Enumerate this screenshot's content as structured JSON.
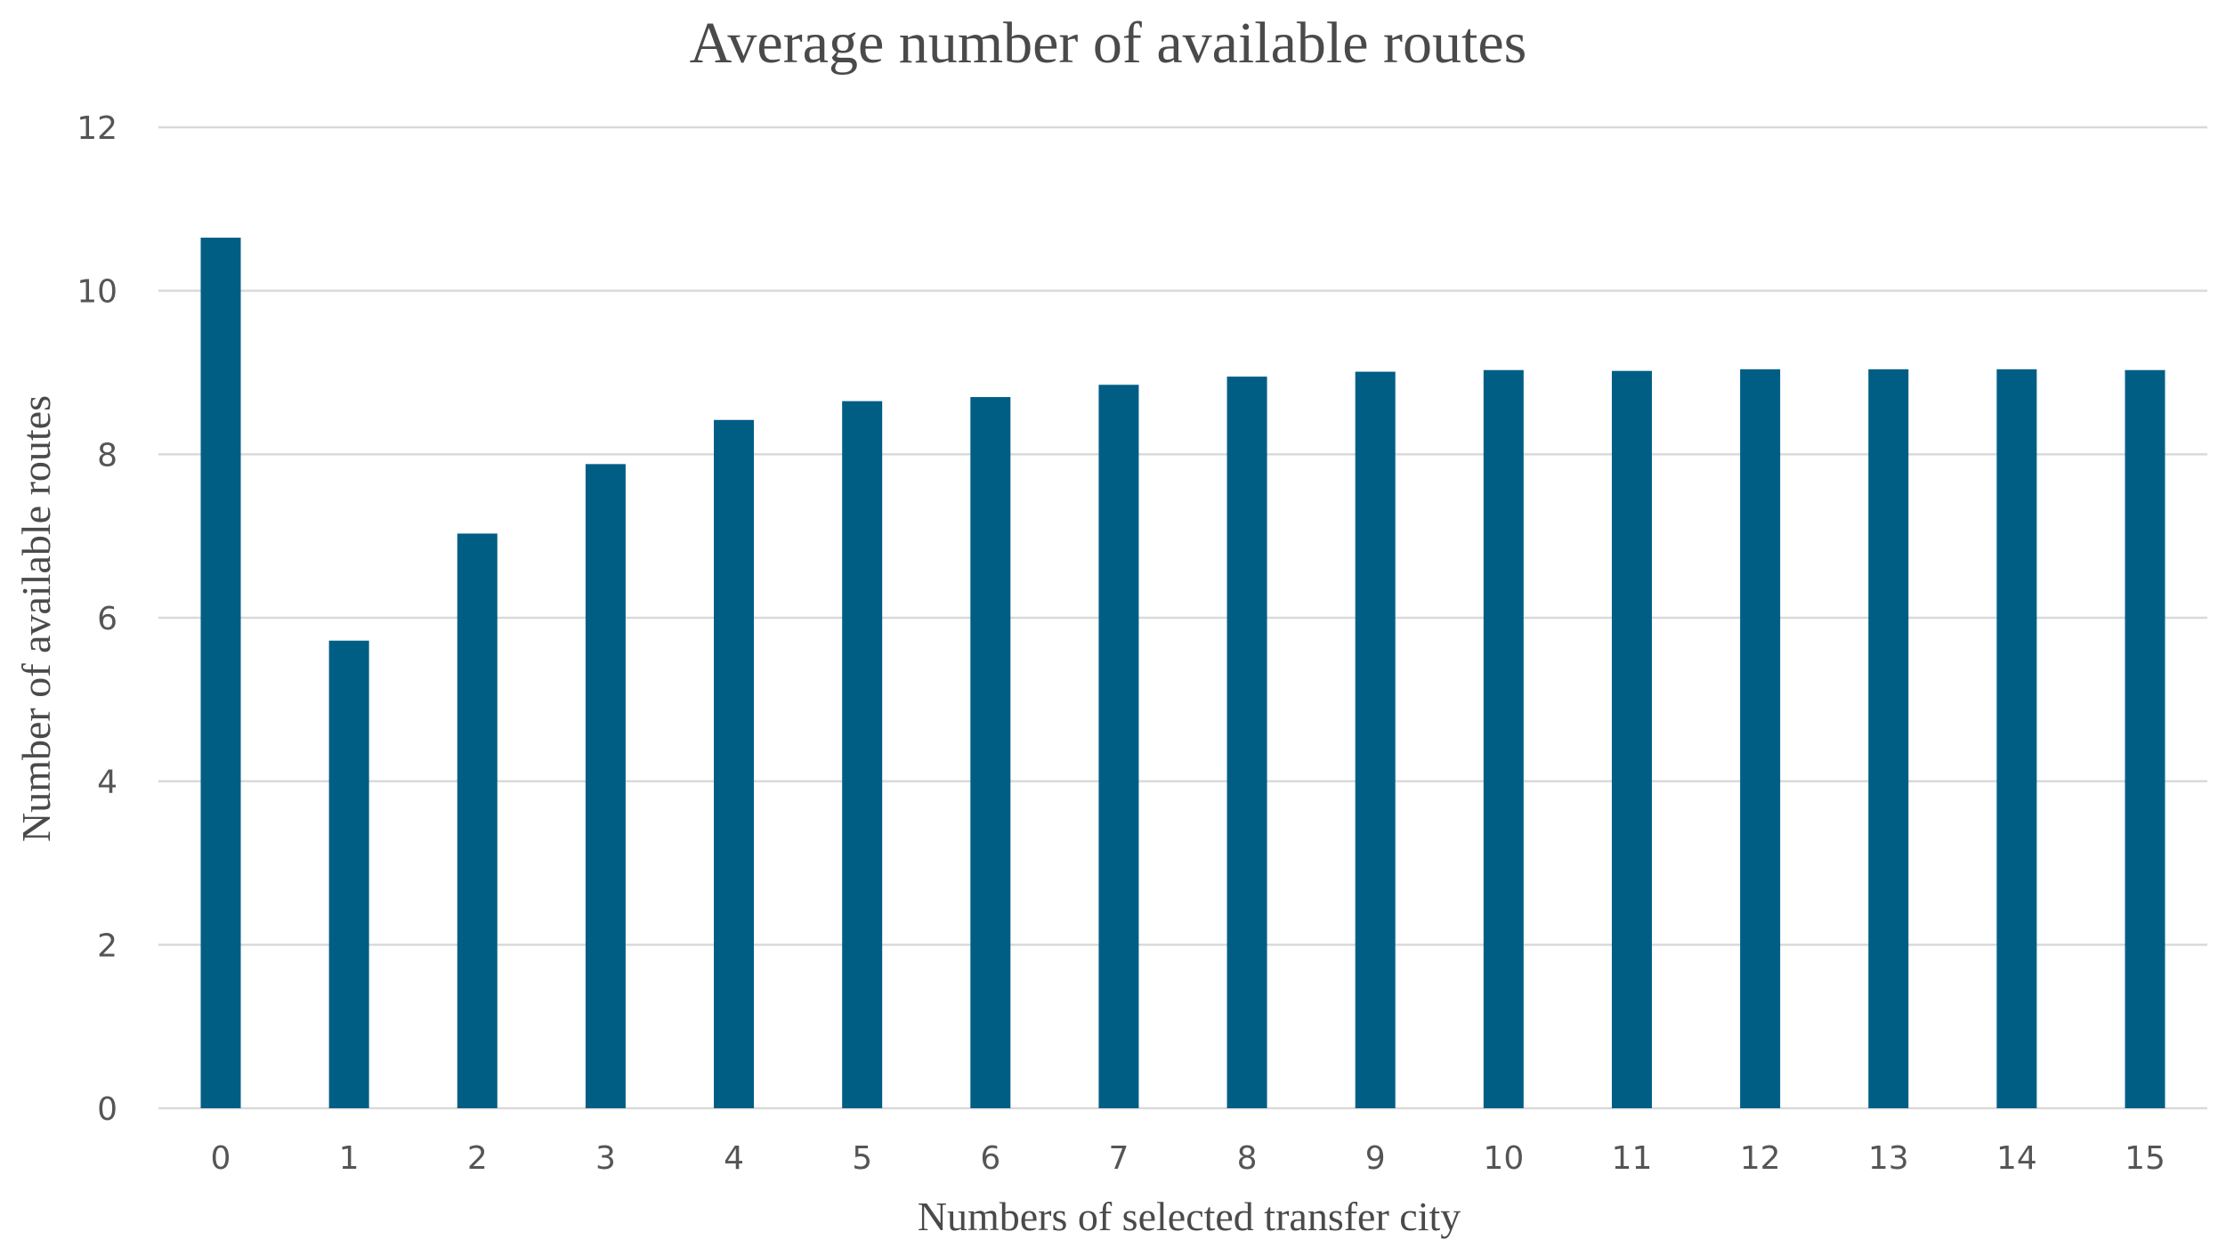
{
  "chart_data": {
    "type": "bar",
    "title": "Average number of available routes",
    "xlabel": "Numbers of selected transfer city",
    "ylabel": "Number of available routes",
    "categories": [
      "0",
      "1",
      "2",
      "3",
      "4",
      "5",
      "6",
      "7",
      "8",
      "9",
      "10",
      "11",
      "12",
      "13",
      "14",
      "15"
    ],
    "values": [
      10.65,
      5.72,
      7.03,
      7.88,
      8.42,
      8.65,
      8.7,
      8.85,
      8.95,
      9.01,
      9.03,
      9.02,
      9.04,
      9.04,
      9.04,
      9.03
    ],
    "ylim": [
      0,
      12
    ],
    "yticks": [
      "0",
      "2",
      "4",
      "6",
      "8",
      "10",
      "12"
    ],
    "grid": true,
    "legend": "none",
    "bar_color": "#005E85",
    "grid_color": "#D9D9D9"
  }
}
